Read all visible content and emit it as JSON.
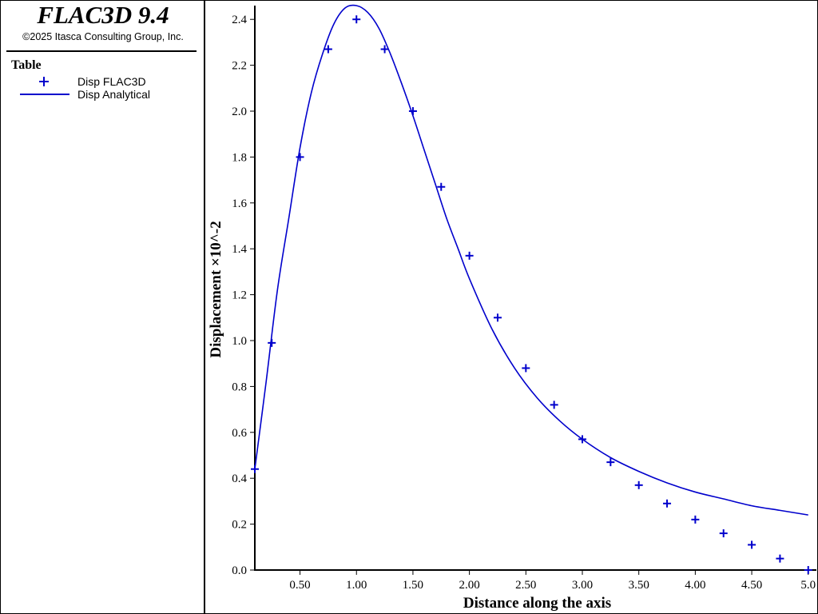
{
  "app": {
    "title": "FLAC3D 9.4",
    "copyright": "©2025 Itasca Consulting Group, Inc."
  },
  "legend": {
    "heading": "Table",
    "entries": [
      {
        "label": "Disp FLAC3D",
        "symbol": "plus-marker"
      },
      {
        "label": "Disp Analytical",
        "symbol": "line"
      }
    ]
  },
  "colors": {
    "series": "#0000cc",
    "axis": "#000000",
    "background": "#ffffff"
  },
  "chart_data": {
    "type": "line",
    "title": "",
    "xlabel": "Distance along the axis",
    "ylabel": "Displacement ×10^-2",
    "xlim": [
      0.1,
      5.03
    ],
    "ylim": [
      0.0,
      2.46
    ],
    "grid": false,
    "x_ticks": [
      0.5,
      1.0,
      1.5,
      2.0,
      2.5,
      3.0,
      3.5,
      4.0,
      4.5,
      5.0
    ],
    "x_tick_labels": [
      "0.50",
      "1.00",
      "1.50",
      "2.00",
      "2.50",
      "3.00",
      "3.50",
      "4.00",
      "4.50",
      "5.0"
    ],
    "y_ticks": [
      0.0,
      0.2,
      0.4,
      0.6,
      0.8,
      1.0,
      1.2,
      1.4,
      1.6,
      1.8,
      2.0,
      2.2,
      2.4
    ],
    "y_tick_labels": [
      "0.0",
      "0.2",
      "0.4",
      "0.6",
      "0.8",
      "1.0",
      "1.2",
      "1.4",
      "1.6",
      "1.8",
      "2.0",
      "2.2",
      "2.4"
    ],
    "series": [
      {
        "name": "Disp FLAC3D",
        "style": "markers",
        "x": [
          0.1,
          0.25,
          0.5,
          0.75,
          1.0,
          1.25,
          1.5,
          1.75,
          2.0,
          2.25,
          2.5,
          2.75,
          3.0,
          3.25,
          3.5,
          3.75,
          4.0,
          4.25,
          4.5,
          4.75,
          5.0
        ],
        "y": [
          0.44,
          0.99,
          1.8,
          2.27,
          2.4,
          2.27,
          2.0,
          1.67,
          1.37,
          1.1,
          0.88,
          0.72,
          0.57,
          0.47,
          0.37,
          0.29,
          0.22,
          0.16,
          0.11,
          0.05,
          0.0
        ]
      },
      {
        "name": "Disp Analytical",
        "style": "line",
        "x": [
          0.1,
          0.2,
          0.3,
          0.4,
          0.5,
          0.6,
          0.7,
          0.8,
          0.9,
          1.0,
          1.1,
          1.2,
          1.3,
          1.4,
          1.5,
          1.6,
          1.7,
          1.8,
          1.9,
          2.0,
          2.2,
          2.4,
          2.6,
          2.8,
          3.0,
          3.25,
          3.5,
          3.75,
          4.0,
          4.25,
          4.5,
          4.75,
          5.0
        ],
        "y": [
          0.44,
          0.82,
          1.22,
          1.53,
          1.84,
          2.08,
          2.25,
          2.38,
          2.45,
          2.46,
          2.43,
          2.36,
          2.25,
          2.12,
          1.98,
          1.83,
          1.68,
          1.53,
          1.4,
          1.27,
          1.05,
          0.88,
          0.75,
          0.65,
          0.57,
          0.49,
          0.43,
          0.38,
          0.34,
          0.31,
          0.28,
          0.26,
          0.24
        ]
      }
    ]
  }
}
